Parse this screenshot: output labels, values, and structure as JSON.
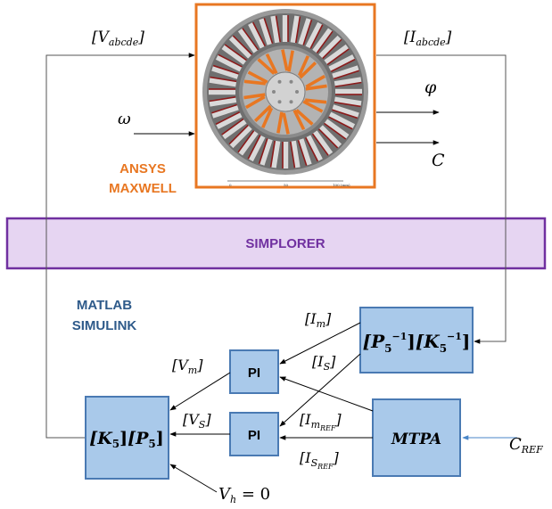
{
  "motor_block": {
    "label_top": "ANSYS",
    "label_bottom": "MAXWELL",
    "scale_ticks": [
      "0",
      "50",
      "100 (mm)"
    ]
  },
  "simplorer": {
    "label": "SIMPLORER"
  },
  "matlab": {
    "label_top": "MATLAB",
    "label_bottom": "SIMULINK"
  },
  "signals": {
    "v_abcde": "[V",
    "v_abcde_sub": "abcde",
    "i_abcde": "[I",
    "i_abcde_sub": "abcde",
    "omega": "ω",
    "phi": "φ",
    "torque": "C",
    "c_ref": "C",
    "c_ref_sub": "REF",
    "i_m": "[I",
    "i_m_sub": "m",
    "i_s": "[I",
    "i_s_sub": "S",
    "v_m": "[V",
    "v_m_sub": "m",
    "v_s": "[V",
    "v_s_sub": "S",
    "i_m_ref": "[I",
    "i_m_ref_sub": "m",
    "i_m_ref_subsub": "REF",
    "i_s_ref": "[I",
    "i_s_ref_sub": "S",
    "i_s_ref_subsub": "REF",
    "v_h": "V",
    "v_h_sub": "h",
    "v_h_eq": " = 0",
    "close_bracket": "]"
  },
  "blocks": {
    "inverse_transform": {
      "p": "[P",
      "k": "[K",
      "sub": "5",
      "sup": "−1",
      "close": "]"
    },
    "pi_top": {
      "label": "PI"
    },
    "pi_bottom": {
      "label": "PI"
    },
    "mtpa": {
      "label": "MTPA"
    },
    "forward_transform": {
      "k": "[K",
      "p": "[P",
      "sub": "5",
      "close": "]"
    }
  },
  "colors": {
    "orange": "#e87722",
    "purple": "#7030a0",
    "purple_fill": "#e6d5f2",
    "block_fill": "#a9c9ea",
    "block_stroke": "#4a7ab3",
    "matlab_blue": "#2e5a8a"
  }
}
